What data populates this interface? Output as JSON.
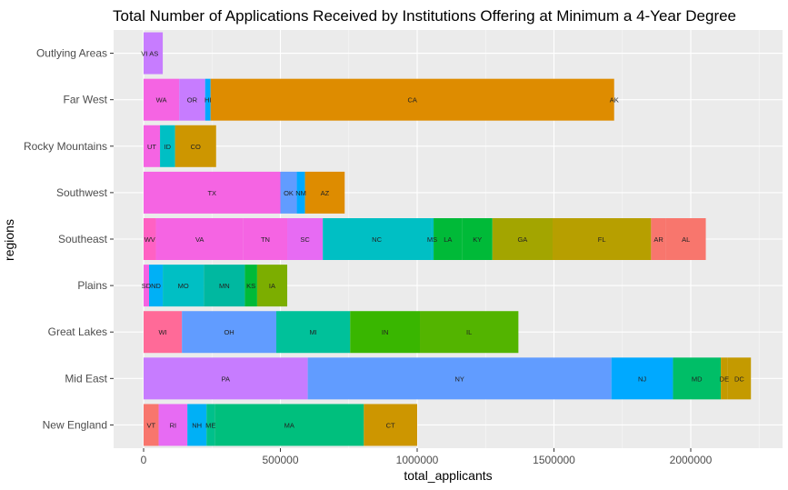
{
  "chart_data": {
    "type": "bar",
    "orientation": "horizontal",
    "stacked": true,
    "title": "Total Number of Applications Received by Institutions Offering at Minimum a 4-Year Degree",
    "xlabel": "total_applicants",
    "ylabel": "regions",
    "xlim": [
      -100000,
      2260000
    ],
    "xticks": [
      0,
      500000,
      1000000,
      1500000,
      2000000
    ],
    "xtick_labels": [
      "0",
      "500000",
      "1000000",
      "1500000",
      "2000000"
    ],
    "grid": true,
    "background": "#ebebeb",
    "categories": [
      "New England",
      "Mid East",
      "Great Lakes",
      "Plains",
      "Southeast",
      "Southwest",
      "Rocky Mountains",
      "Far West",
      "Outlying Areas"
    ],
    "segments": {
      "New England": [
        {
          "label": "VT",
          "value": 55000,
          "color": "#f8766d"
        },
        {
          "label": "RI",
          "value": 105000,
          "color": "#e76bf3"
        },
        {
          "label": "NH",
          "value": 70000,
          "color": "#00b0f6"
        },
        {
          "label": "ME",
          "value": 30000,
          "color": "#00c08b"
        },
        {
          "label": "MA",
          "value": 545000,
          "color": "#00bf7d"
        },
        {
          "label": "CT",
          "value": 195000,
          "color": "#cd9600"
        }
      ],
      "Mid East": [
        {
          "label": "PA",
          "value": 600000,
          "color": "#c77cff"
        },
        {
          "label": "NY",
          "value": 1110000,
          "color": "#619cff"
        },
        {
          "label": "NJ",
          "value": 225000,
          "color": "#00a9ff"
        },
        {
          "label": "MD",
          "value": 175000,
          "color": "#00be67"
        },
        {
          "label": "DE",
          "value": 25000,
          "color": "#c49a00"
        },
        {
          "label": "DC",
          "value": 85000,
          "color": "#c49a00"
        }
      ],
      "Great Lakes": [
        {
          "label": "WI",
          "value": 140000,
          "color": "#ff6a98"
        },
        {
          "label": "OH",
          "value": 345000,
          "color": "#619cff"
        },
        {
          "label": "MI",
          "value": 270000,
          "color": "#00c19a"
        },
        {
          "label": "IN",
          "value": 255000,
          "color": "#39b600"
        },
        {
          "label": "IL",
          "value": 360000,
          "color": "#53b400"
        }
      ],
      "Plains": [
        {
          "label": "SD",
          "value": 20000,
          "color": "#f564e3"
        },
        {
          "label": "ND",
          "value": 50000,
          "color": "#00b0f6"
        },
        {
          "label": "MO",
          "value": 150000,
          "color": "#00bfc4"
        },
        {
          "label": "MN",
          "value": 150000,
          "color": "#00b8a0"
        },
        {
          "label": "KS",
          "value": 45000,
          "color": "#00ba38"
        },
        {
          "label": "IA",
          "value": 110000,
          "color": "#7cae00"
        }
      ],
      "Southeast": [
        {
          "label": "WV",
          "value": 45000,
          "color": "#ff61c3"
        },
        {
          "label": "VA",
          "value": 320000,
          "color": "#f564e3"
        },
        {
          "label": "TN",
          "value": 160000,
          "color": "#f564e3"
        },
        {
          "label": "SC",
          "value": 130000,
          "color": "#e76bf3"
        },
        {
          "label": "NC",
          "value": 395000,
          "color": "#00bfc4"
        },
        {
          "label": "MS",
          "value": 10000,
          "color": "#00bfc4"
        },
        {
          "label": "LA",
          "value": 105000,
          "color": "#00ba38"
        },
        {
          "label": "KY",
          "value": 110000,
          "color": "#00ba38"
        },
        {
          "label": "GA",
          "value": 220000,
          "color": "#a3a500"
        },
        {
          "label": "FL",
          "value": 360000,
          "color": "#b79f00"
        },
        {
          "label": "AR",
          "value": 55000,
          "color": "#f8766d"
        },
        {
          "label": "AL",
          "value": 145000,
          "color": "#f8766d"
        }
      ],
      "Southwest": [
        {
          "label": "TX",
          "value": 500000,
          "color": "#f564e3"
        },
        {
          "label": "OK",
          "value": 60000,
          "color": "#619cff"
        },
        {
          "label": "NM",
          "value": 30000,
          "color": "#00a9ff"
        },
        {
          "label": "AZ",
          "value": 145000,
          "color": "#de8c00"
        }
      ],
      "Rocky Mountains": [
        {
          "label": "UT",
          "value": 60000,
          "color": "#f564e3"
        },
        {
          "label": "ID",
          "value": 55000,
          "color": "#00bfc4"
        },
        {
          "label": "CO",
          "value": 150000,
          "color": "#cd9600"
        }
      ],
      "Far West": [
        {
          "label": "WA",
          "value": 130000,
          "color": "#f564e3"
        },
        {
          "label": "OR",
          "value": 95000,
          "color": "#c77cff"
        },
        {
          "label": "HI",
          "value": 20000,
          "color": "#00a9ff"
        },
        {
          "label": "CA",
          "value": 1475000,
          "color": "#de8c00"
        },
        {
          "label": "AK",
          "value": 0,
          "color": "#de8c00"
        }
      ],
      "Outlying Areas": [
        {
          "label": "VI",
          "value": 5000,
          "color": "#c77cff"
        },
        {
          "label": "AS",
          "value": 65000,
          "color": "#c77cff"
        }
      ]
    }
  }
}
